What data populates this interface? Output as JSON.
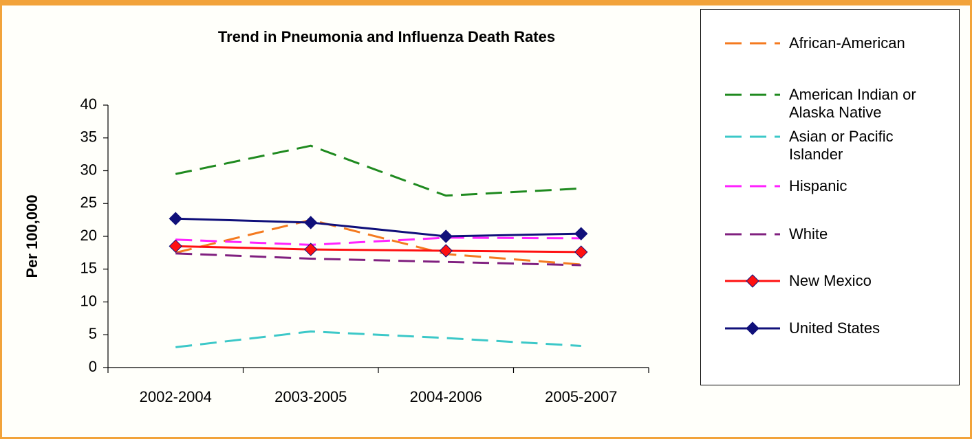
{
  "chart_data": {
    "type": "line",
    "title": "Trend in Pneumonia and Influenza Death Rates",
    "y_label": "Per 100,000",
    "categories": [
      "2002-2004",
      "2003-2005",
      "2004-2006",
      "2005-2007"
    ],
    "ylim": [
      0,
      40
    ],
    "yticks": [
      0,
      5,
      10,
      15,
      20,
      25,
      30,
      35,
      40
    ],
    "series": [
      {
        "name": "African-American",
        "color": "#f47a1f",
        "dashed": true,
        "values": [
          17.5,
          22.5,
          17.3,
          15.7
        ]
      },
      {
        "name": "American Indian or Alaska Native",
        "color": "#1f8a1f",
        "dashed": true,
        "values": [
          29.5,
          33.8,
          26.2,
          27.3
        ]
      },
      {
        "name": "Asian or Pacific Islander",
        "color": "#3cc8c8",
        "dashed": true,
        "values": [
          3.1,
          5.5,
          4.5,
          3.3
        ]
      },
      {
        "name": "Hispanic",
        "color": "#ff22ff",
        "dashed": true,
        "values": [
          19.5,
          18.7,
          19.8,
          19.7
        ]
      },
      {
        "name": "White",
        "color": "#80207f",
        "dashed": true,
        "values": [
          17.4,
          16.6,
          16.1,
          15.6
        ]
      },
      {
        "name": "New Mexico",
        "color": "#ff1010",
        "dashed": false,
        "marker": "diamond",
        "values": [
          18.5,
          18.0,
          17.8,
          17.6
        ]
      },
      {
        "name": "United States",
        "color": "#10107a",
        "dashed": false,
        "marker": "diamond",
        "values": [
          22.7,
          22.1,
          20.0,
          20.4
        ]
      }
    ]
  }
}
